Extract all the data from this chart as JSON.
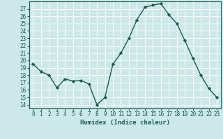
{
  "x": [
    0,
    1,
    2,
    3,
    4,
    5,
    6,
    7,
    8,
    9,
    10,
    11,
    12,
    13,
    14,
    15,
    16,
    17,
    18,
    19,
    20,
    21,
    22,
    23
  ],
  "y": [
    19.5,
    18.5,
    18.0,
    16.3,
    17.5,
    17.2,
    17.3,
    16.8,
    14.0,
    15.0,
    19.5,
    21.0,
    23.0,
    25.5,
    27.2,
    27.5,
    27.7,
    26.2,
    25.0,
    22.7,
    20.3,
    18.0,
    16.2,
    15.0
  ],
  "line_color": "#1a5c52",
  "marker": "D",
  "marker_size": 2.2,
  "bg_color": "#cce8e8",
  "grid_color": "#b8d8d8",
  "xlabel": "Humidex (Indice chaleur)",
  "xlim": [
    -0.5,
    23.5
  ],
  "ylim": [
    13.5,
    28.0
  ],
  "yticks": [
    14,
    15,
    16,
    17,
    18,
    19,
    20,
    21,
    22,
    23,
    24,
    25,
    26,
    27
  ],
  "ytick_labels": [
    "14",
    "15",
    "16",
    "17",
    "18",
    "19",
    "20",
    "21",
    "22",
    "23",
    "24",
    "25",
    "26",
    "27"
  ],
  "xticks": [
    0,
    1,
    2,
    3,
    4,
    5,
    6,
    7,
    8,
    9,
    10,
    11,
    12,
    13,
    14,
    15,
    16,
    17,
    18,
    19,
    20,
    21,
    22,
    23
  ],
  "tick_color": "#1a5c52",
  "label_fontsize": 6.5,
  "tick_fontsize": 5.5,
  "linewidth": 1.0
}
